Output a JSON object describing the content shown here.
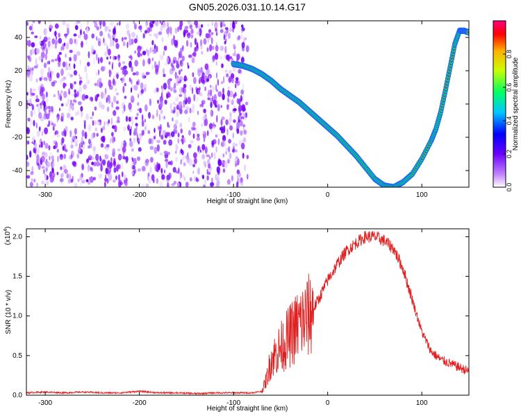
{
  "title": "GN05.2026.031.10.14.G17",
  "chart_data": [
    {
      "type": "heatmap",
      "xlabel": "Height of straight line (km)",
      "ylabel": "Frequency (Hz)",
      "xlim": [
        -320,
        150
      ],
      "ylim": [
        -50,
        50
      ],
      "xticks": [
        -300,
        -200,
        -100,
        0,
        100
      ],
      "yticks": [
        -40,
        -20,
        0,
        20,
        40
      ],
      "colorbar": {
        "label": "Normalized spectral amplitude",
        "range": [
          0,
          1
        ],
        "ticks": [
          "0.0",
          "0.2",
          "0.4",
          "0.6",
          "0.8"
        ],
        "colors": [
          "#ffffff",
          "#a020f0",
          "#0000ff",
          "#00c0ff",
          "#00ff60",
          "#c8ff00",
          "#ffb000",
          "#ff0000",
          "#ff0078"
        ]
      },
      "trace": {
        "x": [
          -100,
          -90,
          -80,
          -70,
          -60,
          -50,
          -40,
          -30,
          -20,
          -10,
          0,
          10,
          20,
          30,
          40,
          50,
          60,
          70,
          80,
          90,
          100,
          110,
          115,
          120,
          125,
          130,
          135,
          140,
          145,
          150
        ],
        "y": [
          24,
          23,
          21,
          18,
          14,
          9,
          5,
          1,
          -4,
          -9,
          -14,
          -19,
          -25,
          -31,
          -38,
          -45,
          -49,
          -50,
          -47,
          -42,
          -33,
          -22,
          -15,
          -5,
          8,
          22,
          36,
          44,
          44,
          43
        ]
      },
      "noise_region_x": [
        -320,
        -85
      ]
    },
    {
      "type": "line",
      "xlabel": "Height of straight line (km)",
      "ylabel": "SNR (10 * v/v)",
      "scale_label": "(x10",
      "scale_exp": "4",
      "scale_close": ")",
      "xlim": [
        -320,
        150
      ],
      "ylim": [
        0,
        2.1
      ],
      "xticks": [
        -300,
        -200,
        -100,
        0,
        100
      ],
      "yticks": [
        "0.0",
        "0.5",
        "1.0",
        "1.5",
        "2.0"
      ],
      "series": [
        {
          "color": "#e02020",
          "x": [
            -320,
            -300,
            -280,
            -260,
            -240,
            -220,
            -200,
            -180,
            -160,
            -140,
            -120,
            -100,
            -80,
            -70,
            -65,
            -60,
            -50,
            -40,
            -30,
            -20,
            -10,
            0,
            10,
            20,
            30,
            40,
            50,
            60,
            70,
            80,
            90,
            100,
            110,
            120,
            130,
            140,
            150
          ],
          "y": [
            0.03,
            0.04,
            0.03,
            0.04,
            0.03,
            0.03,
            0.05,
            0.03,
            0.03,
            0.02,
            0.03,
            0.03,
            0.03,
            0.05,
            0.2,
            0.45,
            0.6,
            0.75,
            0.9,
            1.0,
            1.2,
            1.45,
            1.65,
            1.82,
            1.92,
            2.0,
            2.0,
            1.95,
            1.85,
            1.6,
            1.2,
            0.8,
            0.55,
            0.45,
            0.4,
            0.35,
            0.3
          ]
        }
      ]
    }
  ]
}
